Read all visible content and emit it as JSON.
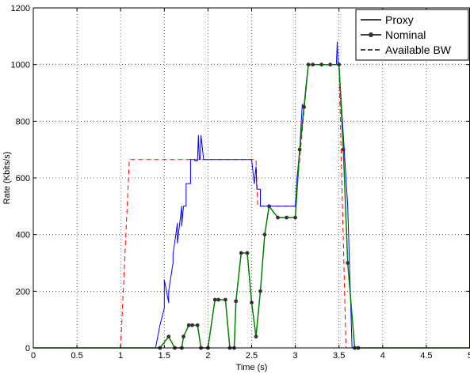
{
  "chart_data": {
    "type": "line",
    "title": "",
    "xlabel": "Time (s)",
    "ylabel": "Rate (Kbits/s)",
    "xlim": [
      0,
      5
    ],
    "ylim": [
      0,
      1200
    ],
    "x_ticks": [
      "0",
      "0.5",
      "1",
      "1.5",
      "2",
      "2.5",
      "3",
      "3.5",
      "4",
      "4.5",
      "5"
    ],
    "y_ticks": [
      "0",
      "200",
      "400",
      "600",
      "800",
      "1000",
      "1200"
    ],
    "grid": true,
    "legend_position": "top-right",
    "legend": {
      "entries": [
        {
          "label": "Proxy",
          "style": "solid"
        },
        {
          "label": "Nominal",
          "style": "solid-dots"
        },
        {
          "label": "Available BW",
          "style": "dashed"
        }
      ]
    },
    "series": [
      {
        "name": "Available BW",
        "color": "#ff0000",
        "style": "dashed",
        "x": [
          0,
          1.0,
          1.1,
          2.55,
          2.57,
          3.0,
          3.15,
          3.5,
          3.58,
          5
        ],
        "y": [
          0,
          0,
          665,
          665,
          500,
          500,
          1000,
          1000,
          0,
          0
        ]
      },
      {
        "name": "Proxy",
        "color": "#0000ff",
        "style": "solid",
        "x": [
          0,
          1.4,
          1.45,
          1.45,
          1.5,
          1.5,
          1.55,
          1.55,
          1.6,
          1.6,
          1.65,
          1.65,
          1.7,
          1.7,
          1.72,
          1.75,
          1.75,
          1.8,
          1.8,
          1.85,
          1.85,
          1.88,
          1.89,
          1.9,
          1.91,
          1.92,
          1.95,
          1.96,
          1.97,
          2.0,
          2.5,
          2.53,
          2.55,
          2.56,
          2.6,
          2.6,
          3.0,
          3.02,
          3.05,
          3.08,
          3.1,
          3.12,
          3.15,
          3.15,
          3.47,
          3.48,
          3.49,
          3.5,
          3.6,
          3.65,
          5
        ],
        "y": [
          0,
          0,
          80,
          80,
          140,
          240,
          160,
          200,
          300,
          330,
          440,
          370,
          500,
          430,
          500,
          500,
          580,
          580,
          665,
          665,
          660,
          660,
          750,
          665,
          665,
          750,
          665,
          665,
          665,
          665,
          665,
          580,
          640,
          560,
          560,
          500,
          500,
          600,
          700,
          860,
          850,
          920,
          1000,
          1000,
          1000,
          1080,
          1000,
          1000,
          500,
          0,
          0
        ]
      },
      {
        "name": "Nominal",
        "color": "#008000",
        "style": "solid-dots",
        "x": [
          0,
          1.45,
          1.55,
          1.62,
          1.7,
          1.72,
          1.78,
          1.82,
          1.88,
          1.92,
          2.0,
          2.08,
          2.12,
          2.2,
          2.25,
          2.3,
          2.32,
          2.38,
          2.45,
          2.5,
          2.55,
          2.6,
          2.65,
          2.7,
          2.8,
          2.9,
          3.0,
          3.05,
          3.1,
          3.15,
          3.2,
          3.3,
          3.4,
          3.5,
          3.55,
          3.6,
          3.68,
          3.72,
          5
        ],
        "y": [
          0,
          0,
          40,
          0,
          0,
          40,
          80,
          80,
          80,
          0,
          0,
          170,
          170,
          170,
          0,
          0,
          165,
          335,
          335,
          160,
          40,
          200,
          400,
          500,
          460,
          460,
          460,
          700,
          850,
          1000,
          1000,
          1000,
          1000,
          1000,
          700,
          300,
          0,
          0,
          0
        ]
      }
    ]
  }
}
